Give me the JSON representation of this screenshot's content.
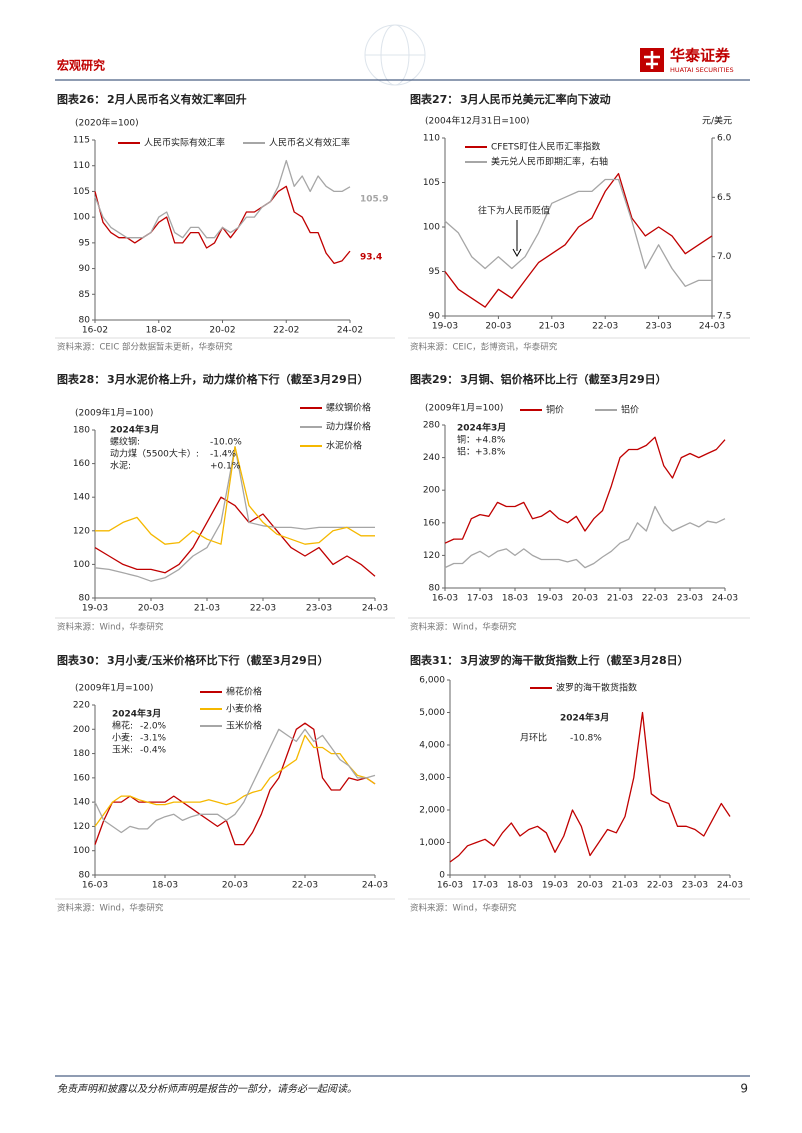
{
  "header": {
    "section": "宏观研究",
    "logo": "华泰证券",
    "logo_sub": "HUATAI SECURITIES"
  },
  "footer": {
    "disclaimer": "免责声明和披露以及分析师声明是报告的一部分，请务必一起阅读。",
    "page": 9
  },
  "chart_data": [
    {
      "type": "line",
      "label": "图表26：",
      "title": "2月人民币名义有效汇率回升",
      "y_label": "(2020年=100)",
      "x": [
        "16-02",
        "16-05",
        "16-08",
        "16-11",
        "17-02",
        "17-05",
        "17-08",
        "17-11",
        "18-02",
        "18-05",
        "18-08",
        "18-11",
        "19-02",
        "19-05",
        "19-08",
        "19-11",
        "20-02",
        "20-05",
        "20-08",
        "20-11",
        "21-02",
        "21-05",
        "21-08",
        "21-11",
        "22-02",
        "22-05",
        "22-08",
        "22-11",
        "23-02",
        "23-05",
        "23-08",
        "23-11",
        "24-02"
      ],
      "series": [
        {
          "name": "人民币实际有效汇率",
          "color": "#c00000",
          "values": [
            105,
            99,
            97,
            96,
            96,
            95,
            96,
            97,
            99,
            100,
            95,
            95,
            97,
            97,
            94,
            95,
            98,
            96,
            98,
            101,
            101,
            102,
            103,
            105,
            106,
            101,
            100,
            97,
            97,
            93,
            91,
            91.5,
            93.4
          ]
        },
        {
          "name": "人民币名义有效汇率",
          "color": "#a6a6a6",
          "values": [
            104,
            100,
            98,
            97,
            96,
            96,
            96,
            97,
            100,
            101,
            97,
            96,
            98,
            98,
            96,
            96,
            98,
            97,
            98,
            100,
            100,
            102,
            103,
            106,
            111,
            106,
            108,
            105,
            108,
            106,
            105,
            105,
            105.9
          ]
        }
      ],
      "ylim": [
        80,
        115
      ],
      "yticks": [
        80,
        85,
        90,
        95,
        100,
        105,
        110,
        115
      ],
      "xticks": [
        "16-02",
        "18-02",
        "20-02",
        "22-02",
        "24-02"
      ],
      "source": "资料来源：CEIC 部分数据暂未更新，华泰研究"
    },
    {
      "type": "line",
      "label": "图表27：",
      "title": "3月人民币兑美元汇率向下波动",
      "y_label": "(2004年12月31日=100)",
      "y2_label": "元/美元",
      "annotation": "往下为人民币贬值",
      "x": [
        "19-03",
        "19-06",
        "19-09",
        "19-12",
        "20-03",
        "20-06",
        "20-09",
        "20-12",
        "21-03",
        "21-06",
        "21-09",
        "21-12",
        "22-03",
        "22-06",
        "22-09",
        "22-12",
        "23-03",
        "23-06",
        "23-09",
        "23-12",
        "24-03"
      ],
      "series": [
        {
          "name": "CFETS盯住人民币汇率指数",
          "color": "#c00000",
          "values": [
            95,
            93,
            92,
            91,
            93,
            92,
            94,
            96,
            97,
            98,
            100,
            101,
            104,
            106,
            101,
            99,
            100,
            99,
            97,
            98,
            99
          ]
        },
        {
          "name": "美元兑人民币即期汇率，右轴",
          "color": "#a6a6a6",
          "axis": "y2",
          "values": [
            6.7,
            6.8,
            7.0,
            7.1,
            7.0,
            7.1,
            7.0,
            6.8,
            6.55,
            6.5,
            6.45,
            6.45,
            6.35,
            6.35,
            6.7,
            7.1,
            6.9,
            7.1,
            7.25,
            7.2,
            7.2
          ]
        }
      ],
      "ylim": [
        90,
        110
      ],
      "yticks": [
        90,
        95,
        100,
        105,
        110
      ],
      "y2lim": [
        6,
        7.5
      ],
      "y2_inverted": true,
      "y2ticks": [
        {
          "value": 6,
          "label": "6.0"
        },
        6.5,
        {
          "value": 7,
          "label": "7.0"
        },
        7.5
      ],
      "xticks": [
        "19-03",
        "20-03",
        "21-03",
        "22-03",
        "23-03",
        "24-03"
      ],
      "source": "资料来源：CEIC，彭博资讯，华泰研究"
    },
    {
      "type": "line",
      "label": "图表28：",
      "title": "3月水泥价格上升，动力煤价格下行（截至3月29日）",
      "y_label": "(2009年1月=100)",
      "note": {
        "title": "2024年3月",
        "rows": [
          [
            "螺纹钢:",
            "-10.0%"
          ],
          [
            "动力煤（5500大卡）:",
            "-1.4%"
          ],
          [
            "水泥:",
            "+0.1%"
          ]
        ]
      },
      "x": [
        "19-03",
        "19-06",
        "19-09",
        "19-12",
        "20-03",
        "20-06",
        "20-09",
        "20-12",
        "21-03",
        "21-06",
        "21-09",
        "21-12",
        "22-03",
        "22-06",
        "22-09",
        "22-12",
        "23-03",
        "23-06",
        "23-09",
        "23-12",
        "24-03"
      ],
      "series": [
        {
          "name": "螺纹钢价格",
          "color": "#c00000",
          "values": [
            110,
            105,
            100,
            97,
            97,
            95,
            100,
            110,
            125,
            140,
            135,
            125,
            130,
            120,
            110,
            105,
            110,
            100,
            105,
            100,
            93
          ]
        },
        {
          "name": "动力煤价格",
          "color": "#a6a6a6",
          "values": [
            98,
            97,
            95,
            93,
            90,
            92,
            97,
            105,
            110,
            125,
            170,
            125,
            123,
            122,
            122,
            121,
            122,
            122,
            122,
            122,
            122
          ]
        },
        {
          "name": "水泥价格",
          "color": "#f5b800",
          "values": [
            120,
            120,
            125,
            128,
            118,
            112,
            113,
            120,
            115,
            112,
            170,
            135,
            125,
            118,
            115,
            112,
            113,
            120,
            122,
            117,
            117
          ]
        }
      ],
      "ylim": [
        80,
        180
      ],
      "yticks": [
        80,
        100,
        120,
        140,
        160,
        180
      ],
      "xticks": [
        "19-03",
        "20-03",
        "21-03",
        "22-03",
        "23-03",
        "24-03"
      ],
      "source": "资料来源：Wind，华泰研究"
    },
    {
      "type": "line",
      "label": "图表29：",
      "title": "3月铜、铝价格环比上行（截至3月29日）",
      "y_label": "(2009年1月=100)",
      "note": {
        "title": "2024年3月",
        "rows": [
          [
            "铜：",
            "+4.8%"
          ],
          [
            "铝：",
            "+3.8%"
          ]
        ]
      },
      "x": [
        "16-03",
        "16-06",
        "16-09",
        "16-12",
        "17-03",
        "17-06",
        "17-09",
        "17-12",
        "18-03",
        "18-06",
        "18-09",
        "18-12",
        "19-03",
        "19-06",
        "19-09",
        "19-12",
        "20-03",
        "20-06",
        "20-09",
        "20-12",
        "21-03",
        "21-06",
        "21-09",
        "21-12",
        "22-03",
        "22-06",
        "22-09",
        "22-12",
        "23-03",
        "23-06",
        "23-09",
        "23-12",
        "24-03"
      ],
      "series": [
        {
          "name": "铜价",
          "color": "#c00000",
          "values": [
            135,
            140,
            140,
            165,
            170,
            168,
            185,
            180,
            180,
            185,
            165,
            168,
            175,
            165,
            160,
            168,
            150,
            165,
            175,
            205,
            240,
            250,
            250,
            255,
            265,
            230,
            215,
            240,
            245,
            240,
            245,
            250,
            262
          ]
        },
        {
          "name": "铝价",
          "color": "#a6a6a6",
          "values": [
            105,
            110,
            110,
            120,
            125,
            118,
            125,
            128,
            120,
            128,
            120,
            115,
            115,
            115,
            112,
            115,
            105,
            110,
            118,
            125,
            135,
            140,
            160,
            150,
            180,
            160,
            150,
            155,
            160,
            155,
            162,
            160,
            165
          ]
        }
      ],
      "ylim": [
        80,
        280
      ],
      "yticks": [
        80,
        120,
        160,
        200,
        240,
        280
      ],
      "xticks": [
        "16-03",
        "17-03",
        "18-03",
        "19-03",
        "20-03",
        "21-03",
        "22-03",
        "23-03",
        "24-03"
      ],
      "source": "资料来源：Wind，华泰研究"
    },
    {
      "type": "line",
      "label": "图表30：",
      "title": "3月小麦/玉米价格环比下行（截至3月29日）",
      "y_label": "(2009年1月=100)",
      "note": {
        "title": "2024年3月",
        "rows": [
          [
            "棉花:",
            "-2.0%"
          ],
          [
            "小麦:",
            "-3.1%"
          ],
          [
            "玉米:",
            "-0.4%"
          ]
        ]
      },
      "x": [
        "16-03",
        "16-06",
        "16-09",
        "16-12",
        "17-03",
        "17-06",
        "17-09",
        "17-12",
        "18-03",
        "18-06",
        "18-09",
        "18-12",
        "19-03",
        "19-06",
        "19-09",
        "19-12",
        "20-03",
        "20-06",
        "20-09",
        "20-12",
        "21-03",
        "21-06",
        "21-09",
        "21-12",
        "22-03",
        "22-06",
        "22-09",
        "22-12",
        "23-03",
        "23-06",
        "23-09",
        "23-12",
        "24-03"
      ],
      "series": [
        {
          "name": "棉花价格",
          "color": "#c00000",
          "values": [
            105,
            125,
            140,
            140,
            145,
            140,
            140,
            140,
            140,
            145,
            140,
            135,
            130,
            125,
            120,
            125,
            105,
            105,
            115,
            130,
            150,
            160,
            180,
            200,
            205,
            200,
            160,
            150,
            150,
            160,
            158,
            160,
            155
          ]
        },
        {
          "name": "小麦价格",
          "color": "#f5b800",
          "values": [
            120,
            130,
            140,
            145,
            145,
            142,
            140,
            138,
            138,
            140,
            140,
            140,
            140,
            142,
            140,
            138,
            140,
            145,
            148,
            150,
            160,
            165,
            170,
            175,
            195,
            185,
            185,
            180,
            180,
            170,
            162,
            160,
            155
          ]
        },
        {
          "name": "玉米价格",
          "color": "#a6a6a6",
          "values": [
            140,
            125,
            120,
            115,
            120,
            118,
            118,
            125,
            128,
            130,
            125,
            128,
            130,
            130,
            130,
            125,
            130,
            140,
            155,
            170,
            185,
            200,
            195,
            190,
            200,
            190,
            195,
            185,
            175,
            170,
            160,
            160,
            162
          ]
        }
      ],
      "ylim": [
        80,
        220
      ],
      "yticks": [
        80,
        100,
        120,
        140,
        160,
        180,
        200,
        220
      ],
      "xticks": [
        "16-03",
        "18-03",
        "20-03",
        "22-03",
        "24-03"
      ],
      "source": "资料来源：Wind，华泰研究"
    },
    {
      "type": "line",
      "label": "图表31：",
      "title": "3月波罗的海干散货指数上行（截至3月28日）",
      "note": {
        "title": "2024年3月",
        "rows": [
          [
            "月环比",
            "-10.8%"
          ]
        ]
      },
      "x": [
        "16-03",
        "16-06",
        "16-09",
        "16-12",
        "17-03",
        "17-06",
        "17-09",
        "17-12",
        "18-03",
        "18-06",
        "18-09",
        "18-12",
        "19-03",
        "19-06",
        "19-09",
        "19-12",
        "20-03",
        "20-06",
        "20-09",
        "20-12",
        "21-03",
        "21-06",
        "21-09",
        "21-12",
        "22-03",
        "22-06",
        "22-09",
        "22-12",
        "23-03",
        "23-06",
        "23-09",
        "23-12",
        "24-03"
      ],
      "series": [
        {
          "name": "波罗的海干散货指数",
          "color": "#c00000",
          "values": [
            400,
            600,
            900,
            1000,
            1100,
            900,
            1300,
            1600,
            1200,
            1400,
            1500,
            1300,
            700,
            1200,
            2000,
            1500,
            600,
            1000,
            1400,
            1300,
            1800,
            3000,
            5000,
            2500,
            2300,
            2200,
            1500,
            1500,
            1400,
            1200,
            1700,
            2200,
            1800
          ]
        }
      ],
      "ylim": [
        0,
        6000
      ],
      "yticks": [
        0,
        {
          "value": 1000,
          "label": "1,000"
        },
        {
          "value": 2000,
          "label": "2,000"
        },
        {
          "value": 3000,
          "label": "3,000"
        },
        {
          "value": 4000,
          "label": "4,000"
        },
        {
          "value": 5000,
          "label": "5,000"
        },
        {
          "value": 6000,
          "label": "6,000"
        }
      ],
      "xticks": [
        "16-03",
        "17-03",
        "18-03",
        "19-03",
        "20-03",
        "21-03",
        "22-03",
        "23-03",
        "24-03"
      ],
      "source": "资料来源：Wind，华泰研究"
    }
  ]
}
